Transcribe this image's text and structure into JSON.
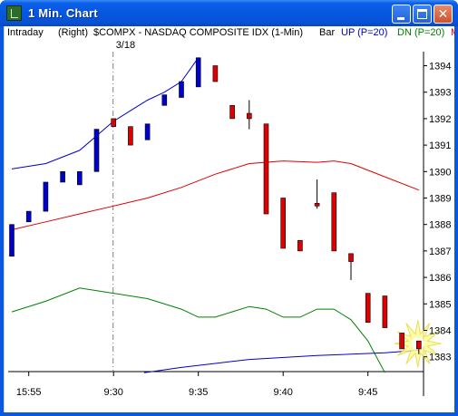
{
  "window": {
    "title": "1 Min. Chart",
    "minimize_label": "",
    "maximize_label": "",
    "close_label": "✕"
  },
  "header": {
    "mode": "Intraday",
    "axis_side": "(Right)",
    "symbol_desc": "$COMPX - NASDAQ COMPOSITE IDX (1-Min)",
    "style": "Bar",
    "up_label": "UP (P=20)",
    "dn_label": "DN (P=20)",
    "mid_label": "M"
  },
  "colors": {
    "up_band": "#0000cc",
    "dn_band": "#008000",
    "mid_band": "#dd0000",
    "up_bar": "#0000cc",
    "down_bar": "#dd0000",
    "session_line": "#808080"
  },
  "chart_data": {
    "type": "bar",
    "session_marker": {
      "label": "3/18",
      "time_index": 6
    },
    "y_ticks": [
      1383,
      1384,
      1385,
      1386,
      1387,
      1388,
      1389,
      1390,
      1391,
      1392,
      1393,
      1394
    ],
    "ylim": [
      1382.4,
      1394.6
    ],
    "x_ticks": [
      {
        "label": "15:55",
        "index": 1
      },
      {
        "label": "9:30",
        "index": 6
      },
      {
        "label": "9:35",
        "index": 11
      },
      {
        "label": "9:40",
        "index": 16
      },
      {
        "label": "9:45",
        "index": 21
      }
    ],
    "bars": [
      {
        "i": 0,
        "open": 1386.8,
        "close": 1388.0
      },
      {
        "i": 1,
        "open": 1388.1,
        "close": 1388.5
      },
      {
        "i": 2,
        "open": 1388.5,
        "close": 1389.6
      },
      {
        "i": 3,
        "open": 1389.6,
        "close": 1390.0
      },
      {
        "i": 4,
        "open": 1389.5,
        "close": 1390.0
      },
      {
        "i": 5,
        "open": 1390.0,
        "close": 1391.6
      },
      {
        "i": 6,
        "open": 1392.0,
        "close": 1391.7
      },
      {
        "i": 7,
        "open": 1391.7,
        "close": 1391.0
      },
      {
        "i": 8,
        "open": 1391.2,
        "close": 1391.8
      },
      {
        "i": 9,
        "open": 1392.5,
        "close": 1392.9
      },
      {
        "i": 10,
        "open": 1392.8,
        "close": 1393.4
      },
      {
        "i": 11,
        "open": 1393.2,
        "close": 1394.3
      },
      {
        "i": 12,
        "open": 1394.0,
        "close": 1393.4
      },
      {
        "i": 13,
        "open": 1392.5,
        "close": 1392.0
      },
      {
        "i": 14,
        "open": 1392.2,
        "close": 1392.0,
        "high": 1392.7,
        "low": 1391.6
      },
      {
        "i": 15,
        "open": 1391.8,
        "close": 1388.4
      },
      {
        "i": 16,
        "open": 1389.0,
        "close": 1387.1
      },
      {
        "i": 17,
        "open": 1387.4,
        "close": 1387.0
      },
      {
        "i": 18,
        "open": 1388.8,
        "close": 1388.7,
        "high": 1389.7,
        "low": 1388.6
      },
      {
        "i": 19,
        "open": 1389.2,
        "close": 1387.0
      },
      {
        "i": 20,
        "open": 1386.9,
        "close": 1386.6,
        "high": 1386.9,
        "low": 1385.9
      },
      {
        "i": 21,
        "open": 1385.4,
        "close": 1384.3
      },
      {
        "i": 22,
        "open": 1385.3,
        "close": 1384.1
      },
      {
        "i": 23,
        "open": 1383.9,
        "close": 1383.3
      },
      {
        "i": 24,
        "open": 1383.6,
        "close": 1383.3,
        "high": 1383.6,
        "low": 1383.1
      }
    ],
    "series": [
      {
        "name": "UP (P=20)",
        "points": [
          [
            0,
            1390.1
          ],
          [
            2,
            1390.3
          ],
          [
            4,
            1390.8
          ],
          [
            6,
            1391.9
          ],
          [
            7,
            1392.3
          ],
          [
            8,
            1392.7
          ],
          [
            9,
            1393.0
          ],
          [
            10,
            1393.4
          ],
          [
            11,
            1394.3
          ]
        ]
      },
      {
        "name": "M",
        "points": [
          [
            0,
            1387.8
          ],
          [
            2,
            1388.1
          ],
          [
            4,
            1388.4
          ],
          [
            6,
            1388.7
          ],
          [
            8,
            1389.0
          ],
          [
            10,
            1389.4
          ],
          [
            12,
            1389.9
          ],
          [
            14,
            1390.3
          ],
          [
            16,
            1390.4
          ],
          [
            18,
            1390.35
          ],
          [
            19,
            1390.4
          ],
          [
            20,
            1390.3
          ],
          [
            22,
            1389.8
          ],
          [
            24,
            1389.3
          ]
        ]
      },
      {
        "name": "DN (P=20)",
        "points": [
          [
            0,
            1384.7
          ],
          [
            2,
            1385.1
          ],
          [
            4,
            1385.6
          ],
          [
            6,
            1385.4
          ],
          [
            8,
            1385.2
          ],
          [
            10,
            1384.8
          ],
          [
            11,
            1384.5
          ],
          [
            12,
            1384.5
          ],
          [
            14,
            1384.9
          ],
          [
            15,
            1384.8
          ],
          [
            16,
            1384.5
          ],
          [
            17,
            1384.5
          ],
          [
            18,
            1384.8
          ],
          [
            19,
            1384.8
          ],
          [
            20,
            1384.4
          ],
          [
            21,
            1383.6
          ],
          [
            22,
            1382.4
          ]
        ]
      },
      {
        "name": "UP (P=20) next",
        "points": [
          [
            7.8,
            1382.4
          ],
          [
            10,
            1382.6
          ],
          [
            12,
            1382.75
          ],
          [
            14,
            1382.9
          ],
          [
            18,
            1383.05
          ],
          [
            22,
            1383.15
          ],
          [
            24,
            1383.25
          ]
        ]
      }
    ]
  }
}
